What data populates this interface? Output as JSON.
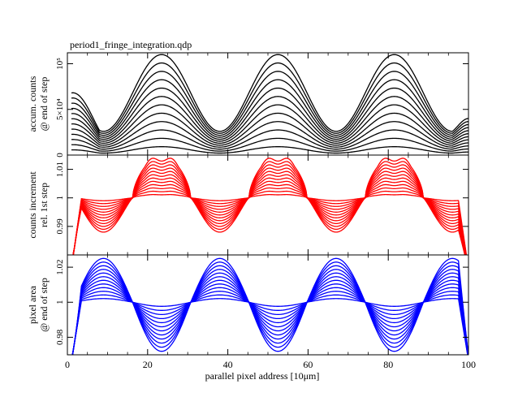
{
  "title": "period1_fringe_integration.qdp",
  "xlabel": "parallel pixel address [10μm]",
  "colors": {
    "panel1": "#000000",
    "panel2": "#ff0000",
    "panel3": "#0000ff",
    "frame": "#000000"
  },
  "chart_data": [
    {
      "type": "line",
      "title": "period1_fringe_integration.qdp",
      "ylabel_line1": "accum. counts",
      "ylabel_line2": "@ end of step",
      "xlim": [
        0,
        100
      ],
      "ylim": [
        0,
        112000
      ],
      "xticks": [
        0,
        20,
        40,
        60,
        80,
        100
      ],
      "yticks": [
        {
          "value": 0,
          "label": "0"
        },
        {
          "value": 50000,
          "label": "5×10⁴"
        },
        {
          "value": 100000,
          "label": "10⁵"
        }
      ],
      "grid": false,
      "series_count": 12,
      "peak_x": [
        23.5,
        52.5,
        81.5
      ],
      "trough_x": [
        8,
        37.5,
        66.5,
        96
      ],
      "top_curve_peak": 110000,
      "top_curve_trough": 26000,
      "top_curve_start": 68000,
      "top_curve_end": 40000,
      "spacing_factor": 0.0833
    },
    {
      "type": "line",
      "ylabel_line1": "counts increment",
      "ylabel_line2": "rel. 1st step",
      "xlim": [
        0,
        100
      ],
      "ylim": [
        0.98,
        1.015
      ],
      "xticks": [
        0,
        20,
        40,
        60,
        80,
        100
      ],
      "yticks": [
        {
          "value": 0.99,
          "label": "0.99"
        },
        {
          "value": 1.0,
          "label": "1"
        },
        {
          "value": 1.01,
          "label": "1.01"
        }
      ],
      "grid": false,
      "series_count": 12,
      "max_positive_deviation": 0.0145,
      "max_negative_deviation": -0.012,
      "edge_dropoff_x": [
        1,
        100
      ]
    },
    {
      "type": "line",
      "ylabel_line1": "pixel area",
      "ylabel_line2": "@ end of step",
      "xlim": [
        0,
        100
      ],
      "ylim": [
        0.97,
        1.027
      ],
      "xticks": [
        0,
        20,
        40,
        60,
        80,
        100
      ],
      "yticks": [
        {
          "value": 0.98,
          "label": "0.98"
        },
        {
          "value": 1.0,
          "label": "1"
        },
        {
          "value": 1.02,
          "label": "1.02"
        }
      ],
      "grid": false,
      "series_count": 12,
      "peak_x": [
        10,
        38,
        67,
        94
      ],
      "peak_value": [
        1.021,
        1.026,
        1.026,
        1.017
      ],
      "trough_x": [
        23,
        52,
        81
      ],
      "trough_value": [
        0.972,
        0.972,
        0.972
      ],
      "edge_dropoff_x": [
        1,
        100
      ]
    }
  ]
}
